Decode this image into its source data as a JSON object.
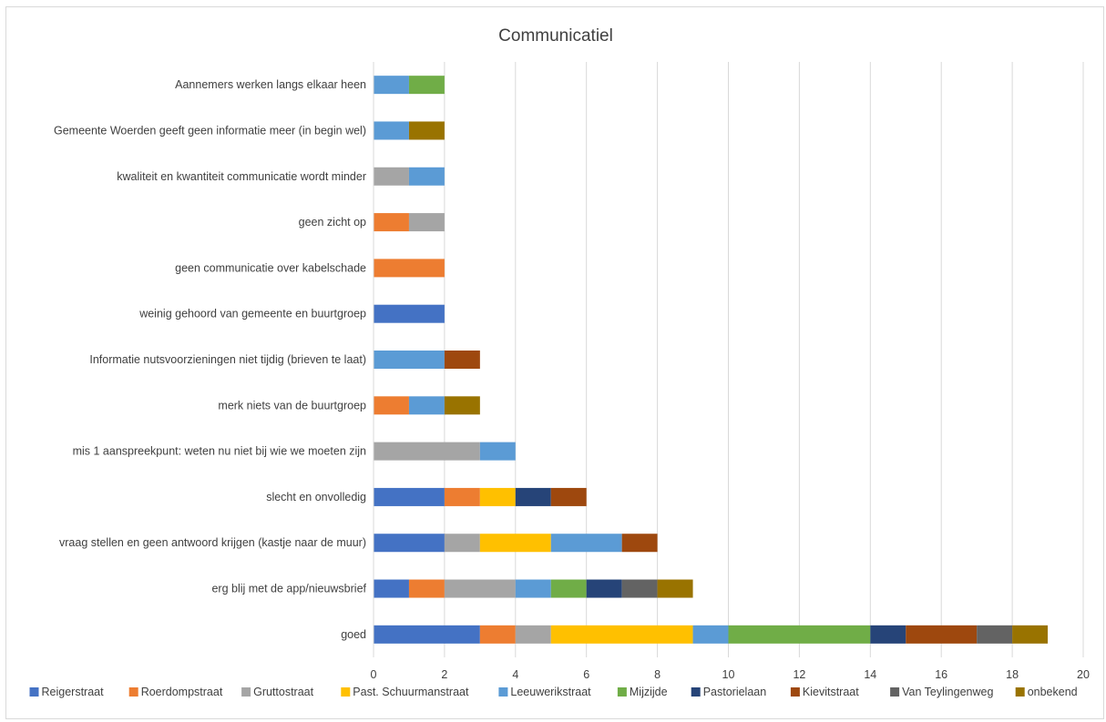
{
  "chart_data": {
    "type": "bar",
    "orientation": "horizontal",
    "stacked": true,
    "title": "Communicatiel",
    "xlabel": "",
    "ylabel": "",
    "xlim": [
      0,
      20
    ],
    "x_ticks": [
      "0",
      "2",
      "4",
      "6",
      "8",
      "10",
      "12",
      "14",
      "16",
      "18",
      "20"
    ],
    "grid": "vertical",
    "legend_position": "bottom",
    "categories": [
      "Aannemers werken langs elkaar heen",
      "Gemeente Woerden geeft geen informatie meer (in begin wel)",
      "kwaliteit en kwantiteit communicatie wordt minder",
      "geen zicht op",
      "geen communicatie over kabelschade",
      "weinig gehoord van gemeente en buurtgroep",
      "Informatie nutsvoorzieningen niet tijdig (brieven te laat)",
      "merk niets van de buurtgroep",
      "mis 1 aanspreekpunt: weten nu niet bij wie we moeten zijn",
      "slecht en onvolledig",
      "vraag stellen en geen antwoord krijgen (kastje naar de muur)",
      "erg blij met de app/nieuwsbrief",
      "goed"
    ],
    "series": [
      {
        "name": "Reigerstraat",
        "color": "#4472c4",
        "values": [
          0,
          0,
          0,
          0,
          0,
          2,
          0,
          0,
          0,
          2,
          2,
          1,
          3
        ]
      },
      {
        "name": "Roerdompstraat",
        "color": "#ed7d31",
        "values": [
          0,
          0,
          0,
          1,
          2,
          0,
          0,
          1,
          0,
          1,
          0,
          1,
          1
        ]
      },
      {
        "name": "Gruttostraat",
        "color": "#a5a5a5",
        "values": [
          0,
          0,
          1,
          1,
          0,
          0,
          0,
          0,
          3,
          0,
          1,
          2,
          1
        ]
      },
      {
        "name": "Past. Schuurmanstraat",
        "color": "#ffc000",
        "values": [
          0,
          0,
          0,
          0,
          0,
          0,
          0,
          0,
          0,
          1,
          2,
          0,
          4
        ]
      },
      {
        "name": "Leeuwerikstraat",
        "color": "#5b9bd5",
        "values": [
          1,
          1,
          1,
          0,
          0,
          0,
          2,
          1,
          1,
          0,
          2,
          1,
          1
        ]
      },
      {
        "name": "Mijzijde",
        "color": "#70ad47",
        "values": [
          1,
          0,
          0,
          0,
          0,
          0,
          0,
          0,
          0,
          0,
          0,
          1,
          4
        ]
      },
      {
        "name": "Pastorielaan",
        "color": "#264478",
        "values": [
          0,
          0,
          0,
          0,
          0,
          0,
          0,
          0,
          0,
          1,
          0,
          1,
          1
        ]
      },
      {
        "name": "Kievitstraat",
        "color": "#9e480e",
        "values": [
          0,
          0,
          0,
          0,
          0,
          0,
          1,
          0,
          0,
          1,
          1,
          0,
          2
        ]
      },
      {
        "name": "Van Teylingenweg",
        "color": "#636363",
        "values": [
          0,
          0,
          0,
          0,
          0,
          0,
          0,
          0,
          0,
          0,
          0,
          1,
          1
        ]
      },
      {
        "name": "onbekend",
        "color": "#997300",
        "values": [
          0,
          1,
          0,
          0,
          0,
          0,
          0,
          1,
          0,
          0,
          0,
          1,
          1
        ]
      }
    ]
  }
}
